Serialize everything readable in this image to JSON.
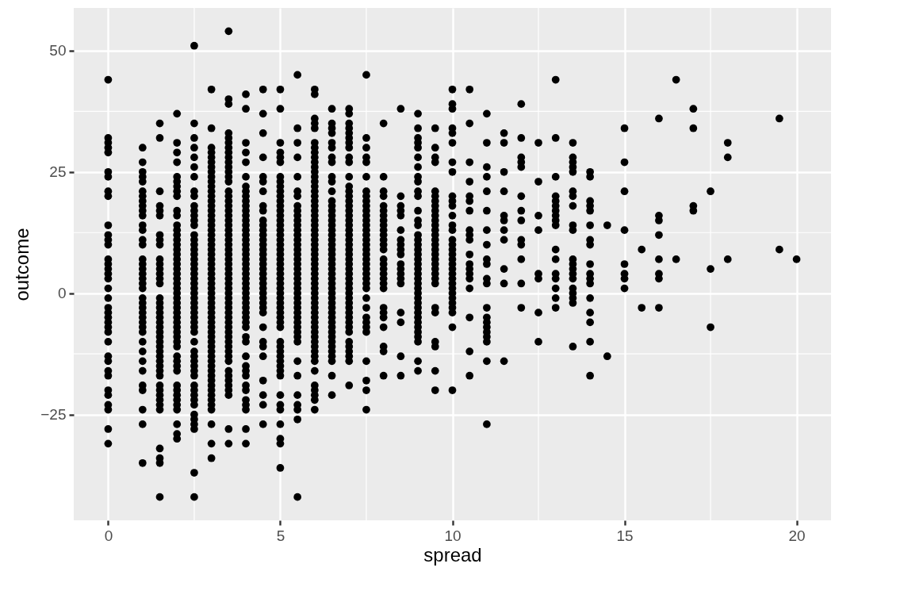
{
  "chart_data": {
    "type": "scatter",
    "xlabel": "spread",
    "ylabel": "outcome",
    "xlim": [
      -1,
      21
    ],
    "ylim": [
      -46.8,
      58.8
    ],
    "xticks": [
      0,
      5,
      10,
      15,
      20
    ],
    "yticks": [
      -25,
      0,
      25,
      50
    ],
    "grid": true,
    "marker": "circle",
    "series": [
      {
        "color": "#000000",
        "x": [
          0,
          0,
          0,
          0,
          0,
          0,
          0,
          0,
          0,
          0,
          0,
          0,
          0,
          0,
          0,
          0,
          0,
          0,
          0,
          0,
          0,
          0,
          0,
          0,
          0,
          0,
          0,
          0,
          0,
          0,
          0,
          0,
          0,
          0,
          0,
          0,
          0
        ],
        "values": [
          44,
          32,
          31,
          30,
          29,
          25,
          24,
          21,
          20,
          14,
          12,
          11,
          10,
          7,
          6,
          5,
          4,
          3,
          1,
          -1,
          -3,
          -4,
          -5,
          -6,
          -7,
          -8,
          -10,
          -13,
          -14,
          -16,
          -17,
          -20,
          -21,
          -23,
          -24,
          -28,
          -31
        ]
      },
      {
        "color": "#000000",
        "x": [
          1,
          1,
          1,
          1,
          1,
          1,
          1,
          1,
          1,
          1,
          1,
          1,
          1,
          1,
          1,
          1,
          1,
          1,
          1,
          1,
          1,
          1,
          1,
          1,
          1,
          1,
          1,
          1,
          1,
          1,
          1,
          1,
          1,
          1,
          1,
          1,
          1,
          1,
          1
        ],
        "values": [
          30,
          27,
          25,
          24,
          23,
          21,
          20,
          19,
          18,
          17,
          16,
          14,
          13,
          11,
          10,
          7,
          6,
          5,
          4,
          3,
          2,
          1,
          -1,
          -2,
          -3,
          -4,
          -5,
          -6,
          -7,
          -8,
          -10,
          -12,
          -14,
          -16,
          -19,
          -20,
          -24,
          -27,
          -35
        ]
      },
      {
        "color": "#000000",
        "x": [
          1.5,
          1.5,
          1.5,
          1.5,
          1.5,
          1.5,
          1.5,
          1.5,
          1.5,
          1.5,
          1.5,
          1.5,
          1.5,
          1.5,
          1.5,
          1.5,
          1.5,
          1.5,
          1.5,
          1.5,
          1.5,
          1.5,
          1.5,
          1.5,
          1.5,
          1.5,
          1.5,
          1.5,
          1.5,
          1.5,
          1.5,
          1.5,
          1.5,
          1.5,
          1.5,
          1.5,
          1.5,
          1.5,
          1.5,
          1.5,
          1.5,
          1.5
        ],
        "values": [
          35,
          32,
          21,
          18,
          17,
          16,
          12,
          11,
          10,
          7,
          6,
          5,
          4,
          3,
          2,
          -1,
          -2,
          -3,
          -4,
          -5,
          -6,
          -7,
          -8,
          -9,
          -10,
          -11,
          -12,
          -13,
          -14,
          -15,
          -16,
          -17,
          -19,
          -20,
          -21,
          -22,
          -23,
          -24,
          -32,
          -34,
          -35,
          -42
        ]
      },
      {
        "color": "#000000",
        "x": [
          2,
          2,
          2,
          2,
          2,
          2,
          2,
          2,
          2,
          2,
          2,
          2,
          2,
          2,
          2,
          2,
          2,
          2,
          2,
          2,
          2,
          2,
          2,
          2,
          2,
          2,
          2,
          2,
          2,
          2,
          2,
          2,
          2,
          2,
          2,
          2,
          2,
          2,
          2,
          2,
          2,
          2,
          2,
          2,
          2,
          2,
          2,
          2,
          2,
          2
        ],
        "values": [
          37,
          31,
          29,
          27,
          24,
          23,
          22,
          21,
          20,
          17,
          16,
          14,
          13,
          12,
          11,
          10,
          9,
          8,
          7,
          6,
          5,
          4,
          3,
          2,
          1,
          0,
          -1,
          -2,
          -3,
          -4,
          -5,
          -6,
          -7,
          -8,
          -9,
          -10,
          -11,
          -13,
          -14,
          -15,
          -16,
          -19,
          -20,
          -21,
          -22,
          -23,
          -24,
          -27,
          -29,
          -30
        ]
      },
      {
        "color": "#000000",
        "x": [
          2.5,
          2.5,
          2.5,
          2.5,
          2.5,
          2.5,
          2.5,
          2.5,
          2.5,
          2.5,
          2.5,
          2.5,
          2.5,
          2.5,
          2.5,
          2.5,
          2.5,
          2.5,
          2.5,
          2.5,
          2.5,
          2.5,
          2.5,
          2.5,
          2.5,
          2.5,
          2.5,
          2.5,
          2.5,
          2.5,
          2.5,
          2.5,
          2.5,
          2.5,
          2.5,
          2.5,
          2.5,
          2.5,
          2.5,
          2.5,
          2.5,
          2.5,
          2.5,
          2.5,
          2.5,
          2.5,
          2.5,
          2.5,
          2.5,
          2.5,
          2.5,
          2.5,
          2.5
        ],
        "values": [
          51,
          35,
          32,
          30,
          28,
          26,
          24,
          21,
          20,
          18,
          17,
          16,
          15,
          14,
          12,
          11,
          10,
          9,
          8,
          7,
          6,
          5,
          4,
          3,
          2,
          1,
          0,
          -1,
          -2,
          -3,
          -4,
          -5,
          -6,
          -7,
          -8,
          -10,
          -12,
          -13,
          -14,
          -15,
          -16,
          -17,
          -19,
          -20,
          -21,
          -22,
          -23,
          -25,
          -26,
          -27,
          -28,
          -37,
          -42
        ]
      },
      {
        "color": "#000000",
        "x": [
          3,
          3,
          3,
          3,
          3,
          3,
          3,
          3,
          3,
          3,
          3,
          3,
          3,
          3,
          3,
          3,
          3,
          3,
          3,
          3,
          3,
          3,
          3,
          3,
          3,
          3,
          3,
          3,
          3,
          3,
          3,
          3,
          3,
          3,
          3,
          3,
          3,
          3,
          3,
          3,
          3,
          3,
          3,
          3,
          3,
          3,
          3,
          3,
          3,
          3,
          3,
          3,
          3,
          3,
          3,
          3,
          3,
          3,
          3,
          3
        ],
        "values": [
          42,
          34,
          30,
          29,
          28,
          27,
          26,
          25,
          24,
          23,
          22,
          21,
          20,
          19,
          18,
          17,
          16,
          15,
          14,
          13,
          12,
          11,
          10,
          9,
          8,
          7,
          6,
          5,
          4,
          3,
          2,
          1,
          0,
          -1,
          -2,
          -3,
          -4,
          -5,
          -6,
          -7,
          -8,
          -9,
          -10,
          -11,
          -12,
          -13,
          -14,
          -15,
          -16,
          -17,
          -18,
          -19,
          -20,
          -21,
          -22,
          -23,
          -24,
          -27,
          -31,
          -34
        ]
      },
      {
        "color": "#000000",
        "x": [
          3.5,
          3.5,
          3.5,
          3.5,
          3.5,
          3.5,
          3.5,
          3.5,
          3.5,
          3.5,
          3.5,
          3.5,
          3.5,
          3.5,
          3.5,
          3.5,
          3.5,
          3.5,
          3.5,
          3.5,
          3.5,
          3.5,
          3.5,
          3.5,
          3.5,
          3.5,
          3.5,
          3.5,
          3.5,
          3.5,
          3.5,
          3.5,
          3.5,
          3.5,
          3.5,
          3.5,
          3.5,
          3.5,
          3.5,
          3.5,
          3.5,
          3.5,
          3.5,
          3.5,
          3.5,
          3.5,
          3.5,
          3.5,
          3.5,
          3.5,
          3.5,
          3.5,
          3.5,
          3.5,
          3.5,
          3.5,
          3.5,
          3.5
        ],
        "values": [
          54,
          40,
          39,
          33,
          32,
          31,
          30,
          29,
          28,
          27,
          26,
          25,
          24,
          23,
          21,
          20,
          19,
          18,
          17,
          16,
          15,
          14,
          13,
          12,
          11,
          10,
          9,
          8,
          7,
          6,
          5,
          4,
          3,
          2,
          1,
          0,
          -1,
          -2,
          -3,
          -4,
          -5,
          -6,
          -7,
          -8,
          -9,
          -10,
          -11,
          -12,
          -13,
          -14,
          -16,
          -17,
          -18,
          -19,
          -20,
          -21,
          -28,
          -31
        ]
      },
      {
        "color": "#000000",
        "x": [
          4,
          4,
          4,
          4,
          4,
          4,
          4,
          4,
          4,
          4,
          4,
          4,
          4,
          4,
          4,
          4,
          4,
          4,
          4,
          4,
          4,
          4,
          4,
          4,
          4,
          4,
          4,
          4,
          4,
          4,
          4,
          4,
          4,
          4,
          4,
          4,
          4,
          4,
          4,
          4,
          4,
          4,
          4,
          4,
          4,
          4,
          4,
          4,
          4
        ],
        "values": [
          41,
          38,
          31,
          29,
          27,
          24,
          22,
          21,
          20,
          19,
          18,
          17,
          16,
          15,
          14,
          13,
          12,
          11,
          10,
          9,
          8,
          7,
          6,
          5,
          4,
          3,
          2,
          1,
          0,
          -1,
          -2,
          -3,
          -4,
          -5,
          -6,
          -7,
          -9,
          -10,
          -13,
          -15,
          -16,
          -17,
          -19,
          -20,
          -22,
          -23,
          -24,
          -28,
          -31
        ]
      },
      {
        "color": "#000000",
        "x": [
          4.5,
          4.5,
          4.5,
          4.5,
          4.5,
          4.5,
          4.5,
          4.5,
          4.5,
          4.5,
          4.5,
          4.5,
          4.5,
          4.5,
          4.5,
          4.5,
          4.5,
          4.5,
          4.5,
          4.5,
          4.5,
          4.5,
          4.5,
          4.5,
          4.5,
          4.5,
          4.5,
          4.5,
          4.5,
          4.5,
          4.5,
          4.5,
          4.5,
          4.5,
          4.5,
          4.5,
          4.5
        ],
        "values": [
          42,
          37,
          33,
          28,
          24,
          23,
          21,
          18,
          17,
          15,
          14,
          13,
          12,
          11,
          10,
          9,
          8,
          7,
          6,
          5,
          4,
          3,
          2,
          1,
          0,
          -1,
          -2,
          -3,
          -4,
          -7,
          -10,
          -11,
          -13,
          -18,
          -21,
          -23,
          -27
        ]
      },
      {
        "color": "#000000",
        "x": [
          5,
          5,
          5,
          5,
          5,
          5,
          5,
          5,
          5,
          5,
          5,
          5,
          5,
          5,
          5,
          5,
          5,
          5,
          5,
          5,
          5,
          5,
          5,
          5,
          5,
          5,
          5,
          5,
          5,
          5,
          5,
          5,
          5,
          5,
          5,
          5,
          5,
          5,
          5,
          5,
          5,
          5,
          5,
          5,
          5,
          5,
          5,
          5,
          5,
          5,
          5,
          5,
          5
        ],
        "values": [
          42,
          38,
          31,
          29,
          28,
          27,
          24,
          23,
          22,
          21,
          20,
          19,
          18,
          17,
          16,
          15,
          14,
          13,
          12,
          11,
          10,
          9,
          8,
          7,
          6,
          5,
          4,
          3,
          2,
          1,
          0,
          -1,
          -2,
          -3,
          -4,
          -5,
          -6,
          -7,
          -10,
          -11,
          -12,
          -13,
          -14,
          -15,
          -16,
          -17,
          -21,
          -23,
          -24,
          -27,
          -30,
          -31,
          -36
        ]
      },
      {
        "color": "#000000",
        "x": [
          5.5,
          5.5,
          5.5,
          5.5,
          5.5,
          5.5,
          5.5,
          5.5,
          5.5,
          5.5,
          5.5,
          5.5,
          5.5,
          5.5,
          5.5,
          5.5,
          5.5,
          5.5,
          5.5,
          5.5,
          5.5,
          5.5,
          5.5,
          5.5,
          5.5,
          5.5,
          5.5,
          5.5,
          5.5,
          5.5,
          5.5,
          5.5,
          5.5,
          5.5,
          5.5,
          5.5,
          5.5,
          5.5,
          5.5,
          5.5,
          5.5,
          5.5,
          5.5
        ],
        "values": [
          45,
          34,
          31,
          28,
          24,
          21,
          20,
          18,
          17,
          16,
          15,
          14,
          13,
          12,
          11,
          10,
          9,
          8,
          7,
          6,
          5,
          4,
          3,
          2,
          1,
          0,
          -1,
          -2,
          -3,
          -4,
          -5,
          -6,
          -7,
          -8,
          -9,
          -10,
          -14,
          -17,
          -21,
          -23,
          -24,
          -26,
          -42
        ]
      },
      {
        "color": "#000000",
        "x": [
          6,
          6,
          6,
          6,
          6,
          6,
          6,
          6,
          6,
          6,
          6,
          6,
          6,
          6,
          6,
          6,
          6,
          6,
          6,
          6,
          6,
          6,
          6,
          6,
          6,
          6,
          6,
          6,
          6,
          6,
          6,
          6,
          6,
          6,
          6,
          6,
          6,
          6,
          6,
          6,
          6,
          6,
          6,
          6,
          6,
          6,
          6,
          6,
          6,
          6,
          6,
          6,
          6,
          6,
          6,
          6,
          6
        ],
        "values": [
          42,
          41,
          36,
          35,
          34,
          31,
          30,
          29,
          28,
          27,
          26,
          25,
          24,
          23,
          22,
          21,
          20,
          19,
          18,
          17,
          16,
          15,
          14,
          13,
          12,
          11,
          10,
          9,
          8,
          7,
          6,
          5,
          4,
          3,
          2,
          1,
          0,
          -1,
          -2,
          -3,
          -4,
          -5,
          -6,
          -7,
          -8,
          -9,
          -10,
          -11,
          -12,
          -13,
          -14,
          -16,
          -19,
          -20,
          -21,
          -22,
          -24
        ]
      },
      {
        "color": "#000000",
        "x": [
          6.5,
          6.5,
          6.5,
          6.5,
          6.5,
          6.5,
          6.5,
          6.5,
          6.5,
          6.5,
          6.5,
          6.5,
          6.5,
          6.5,
          6.5,
          6.5,
          6.5,
          6.5,
          6.5,
          6.5,
          6.5,
          6.5,
          6.5,
          6.5,
          6.5,
          6.5,
          6.5,
          6.5,
          6.5,
          6.5,
          6.5,
          6.5,
          6.5,
          6.5,
          6.5,
          6.5,
          6.5,
          6.5,
          6.5,
          6.5,
          6.5,
          6.5,
          6.5,
          6.5,
          6.5,
          6.5,
          6.5
        ],
        "values": [
          38,
          35,
          34,
          33,
          31,
          30,
          28,
          27,
          24,
          23,
          21,
          19,
          18,
          17,
          16,
          15,
          14,
          13,
          12,
          11,
          10,
          9,
          8,
          7,
          6,
          5,
          4,
          3,
          2,
          1,
          0,
          -1,
          -2,
          -3,
          -4,
          -5,
          -6,
          -7,
          -8,
          -9,
          -10,
          -11,
          -12,
          -13,
          -14,
          -17,
          -21
        ]
      },
      {
        "color": "#000000",
        "x": [
          7,
          7,
          7,
          7,
          7,
          7,
          7,
          7,
          7,
          7,
          7,
          7,
          7,
          7,
          7,
          7,
          7,
          7,
          7,
          7,
          7,
          7,
          7,
          7,
          7,
          7,
          7,
          7,
          7,
          7,
          7,
          7,
          7,
          7,
          7,
          7,
          7,
          7,
          7,
          7,
          7,
          7,
          7,
          7,
          7,
          7,
          7,
          7
        ],
        "values": [
          38,
          37,
          35,
          34,
          33,
          32,
          31,
          30,
          28,
          27,
          24,
          22,
          21,
          20,
          19,
          18,
          17,
          16,
          15,
          14,
          13,
          12,
          11,
          10,
          9,
          8,
          7,
          6,
          5,
          4,
          3,
          2,
          1,
          0,
          -1,
          -2,
          -3,
          -4,
          -5,
          -6,
          -7,
          -8,
          -10,
          -11,
          -12,
          -13,
          -14,
          -19
        ]
      },
      {
        "color": "#000000",
        "x": [
          7.5,
          7.5,
          7.5,
          7.5,
          7.5,
          7.5,
          7.5,
          7.5,
          7.5,
          7.5,
          7.5,
          7.5,
          7.5,
          7.5,
          7.5,
          7.5,
          7.5,
          7.5,
          7.5,
          7.5,
          7.5,
          7.5,
          7.5,
          7.5,
          7.5,
          7.5,
          7.5,
          7.5,
          7.5,
          7.5,
          7.5,
          7.5,
          7.5,
          7.5,
          7.5,
          7.5,
          7.5
        ],
        "values": [
          45,
          32,
          30,
          28,
          27,
          24,
          21,
          20,
          19,
          18,
          17,
          16,
          15,
          14,
          13,
          12,
          11,
          10,
          9,
          8,
          7,
          6,
          5,
          4,
          3,
          2,
          1,
          -1,
          -3,
          -5,
          -6,
          -7,
          -8,
          -14,
          -18,
          -20,
          -24
        ]
      },
      {
        "color": "#000000",
        "x": [
          8,
          8,
          8,
          8,
          8,
          8,
          8,
          8,
          8,
          8,
          8,
          8,
          8,
          8,
          8,
          8,
          8,
          8,
          8,
          8,
          8,
          8,
          8,
          8,
          8,
          8,
          8,
          8
        ],
        "values": [
          35,
          24,
          21,
          20,
          18,
          17,
          16,
          15,
          14,
          13,
          12,
          11,
          10,
          9,
          7,
          6,
          5,
          4,
          3,
          2,
          1,
          -3,
          -4,
          -5,
          -7,
          -11,
          -12,
          -17
        ]
      },
      {
        "color": "#000000",
        "x": [
          8.5,
          8.5,
          8.5,
          8.5,
          8.5,
          8.5,
          8.5,
          8.5,
          8.5,
          8.5,
          8.5,
          8.5,
          8.5,
          8.5,
          8.5,
          8.5,
          8.5,
          8.5,
          8.5
        ],
        "values": [
          38,
          20,
          18,
          17,
          16,
          13,
          11,
          10,
          9,
          8,
          6,
          5,
          4,
          3,
          2,
          -4,
          -6,
          -13,
          -17
        ]
      },
      {
        "color": "#000000",
        "x": [
          9,
          9,
          9,
          9,
          9,
          9,
          9,
          9,
          9,
          9,
          9,
          9,
          9,
          9,
          9,
          9,
          9,
          9,
          9,
          9,
          9,
          9,
          9,
          9,
          9,
          9,
          9,
          9,
          9,
          9,
          9,
          9,
          9,
          9,
          9,
          9,
          9,
          9,
          9
        ],
        "values": [
          37,
          34,
          32,
          31,
          30,
          28,
          26,
          24,
          23,
          21,
          20,
          17,
          15,
          14,
          12,
          11,
          10,
          9,
          8,
          7,
          6,
          5,
          4,
          3,
          2,
          1,
          0,
          -1,
          -2,
          -3,
          -4,
          -5,
          -6,
          -7,
          -8,
          -9,
          -10,
          -14,
          -16
        ]
      },
      {
        "color": "#000000",
        "x": [
          9.5,
          9.5,
          9.5,
          9.5,
          9.5,
          9.5,
          9.5,
          9.5,
          9.5,
          9.5,
          9.5,
          9.5,
          9.5,
          9.5,
          9.5,
          9.5,
          9.5,
          9.5,
          9.5,
          9.5,
          9.5,
          9.5,
          9.5,
          9.5,
          9.5,
          9.5,
          9.5,
          9.5,
          9.5,
          9.5
        ],
        "values": [
          34,
          30,
          28,
          27,
          21,
          20,
          19,
          18,
          17,
          16,
          15,
          14,
          13,
          12,
          11,
          10,
          9,
          8,
          7,
          6,
          5,
          4,
          3,
          2,
          -3,
          -4,
          -10,
          -11,
          -16,
          -20
        ]
      },
      {
        "color": "#000000",
        "x": [
          10,
          10,
          10,
          10,
          10,
          10,
          10,
          10,
          10,
          10,
          10,
          10,
          10,
          10,
          10,
          10,
          10,
          10,
          10,
          10,
          10,
          10,
          10,
          10,
          10,
          10,
          10,
          10,
          10,
          10,
          10,
          10
        ],
        "values": [
          42,
          39,
          38,
          34,
          33,
          31,
          27,
          25,
          20,
          19,
          18,
          16,
          14,
          13,
          11,
          10,
          9,
          8,
          7,
          6,
          5,
          4,
          3,
          2,
          1,
          0,
          -1,
          -2,
          -3,
          -4,
          -7,
          -20
        ]
      },
      {
        "color": "#000000",
        "x": [
          10.5,
          10.5,
          10.5,
          10.5,
          10.5,
          10.5,
          10.5,
          10.5,
          10.5,
          10.5,
          10.5,
          10.5,
          10.5,
          10.5,
          10.5,
          10.5,
          10.5,
          10.5,
          10.5
        ],
        "values": [
          42,
          35,
          27,
          23,
          20,
          19,
          17,
          13,
          12,
          11,
          8,
          6,
          5,
          4,
          3,
          1,
          -5,
          -12,
          -17
        ]
      },
      {
        "color": "#000000",
        "x": [
          11,
          11,
          11,
          11,
          11,
          11,
          11,
          11,
          11,
          11,
          11,
          11,
          11,
          11,
          11,
          11,
          11,
          11,
          11,
          11,
          11
        ],
        "values": [
          37,
          31,
          26,
          24,
          21,
          17,
          13,
          10,
          7,
          6,
          3,
          2,
          -3,
          -5,
          -6,
          -7,
          -8,
          -9,
          -10,
          -14,
          -27
        ]
      },
      {
        "color": "#000000",
        "x": [
          11.5,
          11.5,
          11.5,
          11.5,
          11.5,
          11.5,
          11.5,
          11.5,
          11.5,
          11.5,
          11.5
        ],
        "values": [
          33,
          31,
          25,
          21,
          16,
          15,
          13,
          11,
          5,
          2,
          -14
        ]
      },
      {
        "color": "#000000",
        "x": [
          12,
          12,
          12,
          12,
          12,
          12,
          12,
          12,
          12,
          12,
          12,
          12,
          12
        ],
        "values": [
          39,
          32,
          28,
          27,
          26,
          20,
          17,
          15,
          11,
          10,
          7,
          2,
          -3
        ]
      },
      {
        "color": "#000000",
        "x": [
          12.5,
          12.5,
          12.5,
          12.5,
          12.5,
          12.5,
          12.5,
          12.5
        ],
        "values": [
          31,
          23,
          16,
          13,
          4,
          3,
          -4,
          -10
        ]
      },
      {
        "color": "#000000",
        "x": [
          13,
          13,
          13,
          13,
          13,
          13,
          13,
          13,
          13,
          13,
          13,
          13,
          13,
          13,
          13,
          13,
          13
        ],
        "values": [
          44,
          32,
          24,
          20,
          19,
          18,
          17,
          16,
          15,
          14,
          9,
          7,
          4,
          3,
          1,
          -1,
          -3
        ]
      },
      {
        "color": "#000000",
        "x": [
          13.5,
          13.5,
          13.5,
          13.5,
          13.5,
          13.5,
          13.5,
          13.5,
          13.5,
          13.5,
          13.5,
          13.5,
          13.5,
          13.5,
          13.5,
          13.5,
          13.5,
          13.5,
          13.5,
          13.5
        ],
        "values": [
          31,
          28,
          27,
          26,
          25,
          21,
          20,
          18,
          14,
          13,
          7,
          6,
          5,
          4,
          3,
          1,
          0,
          -1,
          -2,
          -11
        ]
      },
      {
        "color": "#000000",
        "x": [
          14,
          14,
          14,
          14,
          14,
          14,
          14,
          14,
          14,
          14,
          14,
          14,
          14,
          14,
          14,
          14,
          14
        ],
        "values": [
          25,
          24,
          19,
          18,
          17,
          14,
          11,
          10,
          6,
          4,
          3,
          2,
          -1,
          -4,
          -6,
          -10,
          -17
        ]
      },
      {
        "color": "#000000",
        "x": [
          14.5,
          14.5
        ],
        "values": [
          14,
          -13
        ]
      },
      {
        "color": "#000000",
        "x": [
          15,
          15,
          15,
          15,
          15,
          15,
          15,
          15
        ],
        "values": [
          34,
          27,
          21,
          13,
          6,
          4,
          3,
          1
        ]
      },
      {
        "color": "#000000",
        "x": [
          15.5,
          15.5
        ],
        "values": [
          9,
          -3
        ]
      },
      {
        "color": "#000000",
        "x": [
          16,
          16,
          16,
          16,
          16,
          16,
          16,
          16
        ],
        "values": [
          36,
          16,
          15,
          12,
          7,
          4,
          3,
          -3
        ]
      },
      {
        "color": "#000000",
        "x": [
          16.5,
          16.5
        ],
        "values": [
          44,
          7
        ]
      },
      {
        "color": "#000000",
        "x": [
          17,
          17,
          17,
          17
        ],
        "values": [
          38,
          34,
          18,
          17
        ]
      },
      {
        "color": "#000000",
        "x": [
          17.5,
          17.5,
          17.5
        ],
        "values": [
          21,
          5,
          -7
        ]
      },
      {
        "color": "#000000",
        "x": [
          18,
          18,
          18
        ],
        "values": [
          31,
          28,
          7
        ]
      },
      {
        "color": "#000000",
        "x": [
          19.5,
          19.5
        ],
        "values": [
          36,
          9
        ]
      },
      {
        "color": "#000000",
        "x": [
          20
        ],
        "values": [
          7
        ]
      }
    ]
  }
}
